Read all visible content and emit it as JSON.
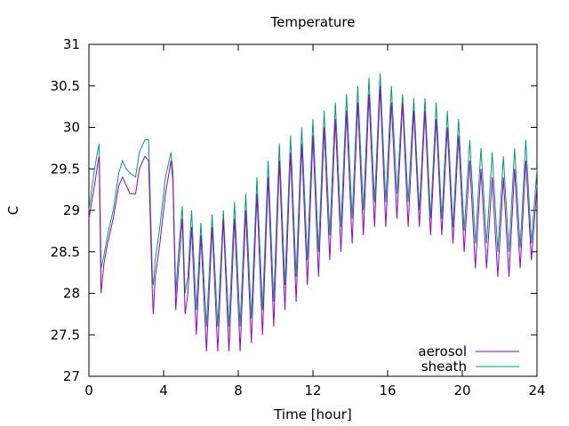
{
  "chart_data": {
    "type": "line",
    "title": "Temperature",
    "xlabel": "Time [hour]",
    "ylabel": "C",
    "xlim": [
      0,
      24
    ],
    "ylim": [
      27,
      31
    ],
    "xticks": [
      0,
      4,
      8,
      12,
      16,
      20,
      24
    ],
    "yticks": [
      27,
      27.5,
      28,
      28.5,
      29,
      29.5,
      30,
      30.5,
      31
    ],
    "grid": false,
    "legend_position": "bottom-right",
    "colors": {
      "aerosol": "#9400d3",
      "sheath": "#009e73"
    },
    "series": [
      {
        "name": "aerosol",
        "color": "#9400d3",
        "x": [
          0,
          0.3,
          0.5,
          0.55,
          0.65,
          0.8,
          1.0,
          1.3,
          1.6,
          1.8,
          2.0,
          2.2,
          2.5,
          2.7,
          3.0,
          3.2,
          3.4,
          3.45,
          3.55,
          3.8,
          4.1,
          4.4,
          4.5,
          4.65,
          4.8,
          5.0,
          5.15,
          5.3,
          5.5,
          5.75,
          6.0,
          6.3,
          6.6,
          6.9,
          7.2,
          7.5,
          7.8,
          8.1,
          8.4,
          8.7,
          9.0,
          9.3,
          9.6,
          9.9,
          10.2,
          10.5,
          10.8,
          11.1,
          11.4,
          11.7,
          12.0,
          12.3,
          12.6,
          12.9,
          13.2,
          13.5,
          13.8,
          14.1,
          14.4,
          14.7,
          15.0,
          15.3,
          15.6,
          15.9,
          16.2,
          16.5,
          16.8,
          17.1,
          17.4,
          17.7,
          18.0,
          18.3,
          18.6,
          18.9,
          19.2,
          19.5,
          19.8,
          20.1,
          20.4,
          20.7,
          21.0,
          21.3,
          21.6,
          21.9,
          22.2,
          22.5,
          22.8,
          23.1,
          23.4,
          23.7,
          24.0
        ],
        "y": [
          28.9,
          29.3,
          29.6,
          29.65,
          28.0,
          28.35,
          28.6,
          28.9,
          29.3,
          29.4,
          29.3,
          29.2,
          29.2,
          29.5,
          29.65,
          29.6,
          28.0,
          27.75,
          28.2,
          28.6,
          29.2,
          29.6,
          29.35,
          27.8,
          28.3,
          28.9,
          27.75,
          28.0,
          28.8,
          27.5,
          28.7,
          27.3,
          28.8,
          27.3,
          28.9,
          27.3,
          28.9,
          27.3,
          29.0,
          27.4,
          29.2,
          27.5,
          29.4,
          27.6,
          29.6,
          27.8,
          29.7,
          27.9,
          29.8,
          28.1,
          29.9,
          28.2,
          30.0,
          28.4,
          30.1,
          28.5,
          30.2,
          28.6,
          30.3,
          28.7,
          30.4,
          28.8,
          30.5,
          28.8,
          30.3,
          28.9,
          30.3,
          28.8,
          30.2,
          28.8,
          30.2,
          28.7,
          30.1,
          28.7,
          30.0,
          28.6,
          29.9,
          28.5,
          29.6,
          28.3,
          29.5,
          28.3,
          29.4,
          28.2,
          29.4,
          28.2,
          29.5,
          28.3,
          29.6,
          28.4,
          29.3
        ]
      },
      {
        "name": "sheath",
        "color": "#009e73",
        "x": [
          0,
          0.3,
          0.5,
          0.55,
          0.65,
          0.8,
          1.0,
          1.3,
          1.6,
          1.8,
          2.0,
          2.2,
          2.5,
          2.7,
          3.0,
          3.2,
          3.4,
          3.45,
          3.55,
          3.8,
          4.1,
          4.4,
          4.5,
          4.65,
          4.8,
          5.0,
          5.15,
          5.3,
          5.5,
          5.75,
          6.0,
          6.3,
          6.6,
          6.9,
          7.2,
          7.5,
          7.8,
          8.1,
          8.4,
          8.7,
          9.0,
          9.3,
          9.6,
          9.9,
          10.2,
          10.5,
          10.8,
          11.1,
          11.4,
          11.7,
          12.0,
          12.3,
          12.6,
          12.9,
          13.2,
          13.5,
          13.8,
          14.1,
          14.4,
          14.7,
          15.0,
          15.3,
          15.6,
          15.9,
          16.2,
          16.5,
          16.8,
          17.1,
          17.4,
          17.7,
          18.0,
          18.3,
          18.6,
          18.9,
          19.2,
          19.5,
          19.8,
          20.1,
          20.4,
          20.7,
          21.0,
          21.3,
          21.6,
          21.9,
          22.2,
          22.5,
          22.8,
          23.1,
          23.4,
          23.7,
          24.0
        ],
        "y": [
          29.0,
          29.5,
          29.75,
          29.8,
          28.3,
          28.45,
          28.7,
          29.0,
          29.45,
          29.6,
          29.5,
          29.45,
          29.4,
          29.7,
          29.85,
          29.85,
          28.2,
          28.1,
          28.4,
          28.8,
          29.4,
          29.7,
          29.45,
          28.0,
          28.5,
          29.05,
          28.0,
          28.2,
          29.0,
          27.8,
          28.85,
          27.6,
          28.95,
          27.6,
          29.0,
          27.6,
          29.1,
          27.6,
          29.2,
          27.7,
          29.4,
          27.8,
          29.6,
          27.9,
          29.8,
          28.1,
          29.9,
          28.2,
          30.0,
          28.4,
          30.1,
          28.5,
          30.2,
          28.7,
          30.3,
          28.8,
          30.4,
          28.9,
          30.5,
          29.0,
          30.6,
          29.1,
          30.65,
          29.1,
          30.5,
          29.2,
          30.4,
          29.1,
          30.35,
          29.0,
          30.35,
          28.9,
          30.3,
          28.9,
          30.2,
          28.8,
          30.1,
          28.75,
          29.85,
          28.6,
          29.75,
          28.6,
          29.7,
          28.5,
          29.65,
          28.5,
          29.75,
          28.55,
          29.85,
          28.6,
          29.5
        ]
      }
    ]
  }
}
